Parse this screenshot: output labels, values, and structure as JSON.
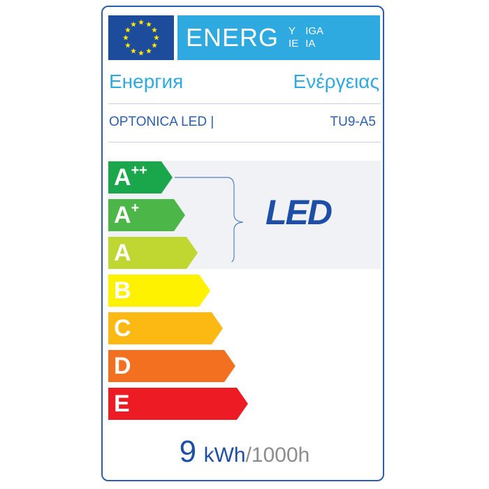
{
  "header": {
    "title_main": "ENERG",
    "title_sup": [
      "Y",
      "IGA"
    ],
    "title_sub": [
      "IE",
      "IA"
    ],
    "flag_icon": "eu-flag-icon"
  },
  "languages": {
    "left": "Енергия",
    "right": "Ενέργειας"
  },
  "supplier": {
    "name": "OPTONICA LED |",
    "model": "TU9-A5"
  },
  "classes": [
    {
      "letter": "A",
      "sup": "++",
      "color": "#1aa64a"
    },
    {
      "letter": "A",
      "sup": "+",
      "color": "#4cb748"
    },
    {
      "letter": "A",
      "sup": "",
      "color": "#bfd730"
    },
    {
      "letter": "B",
      "sup": "",
      "color": "#fff200"
    },
    {
      "letter": "C",
      "sup": "",
      "color": "#fdb913"
    },
    {
      "letter": "D",
      "sup": "",
      "color": "#f37021"
    },
    {
      "letter": "E",
      "sup": "",
      "color": "#ed1c24"
    }
  ],
  "led_logo": "LED",
  "consumption": {
    "value": "9",
    "unit": "kWh",
    "per": "/1000h"
  }
}
